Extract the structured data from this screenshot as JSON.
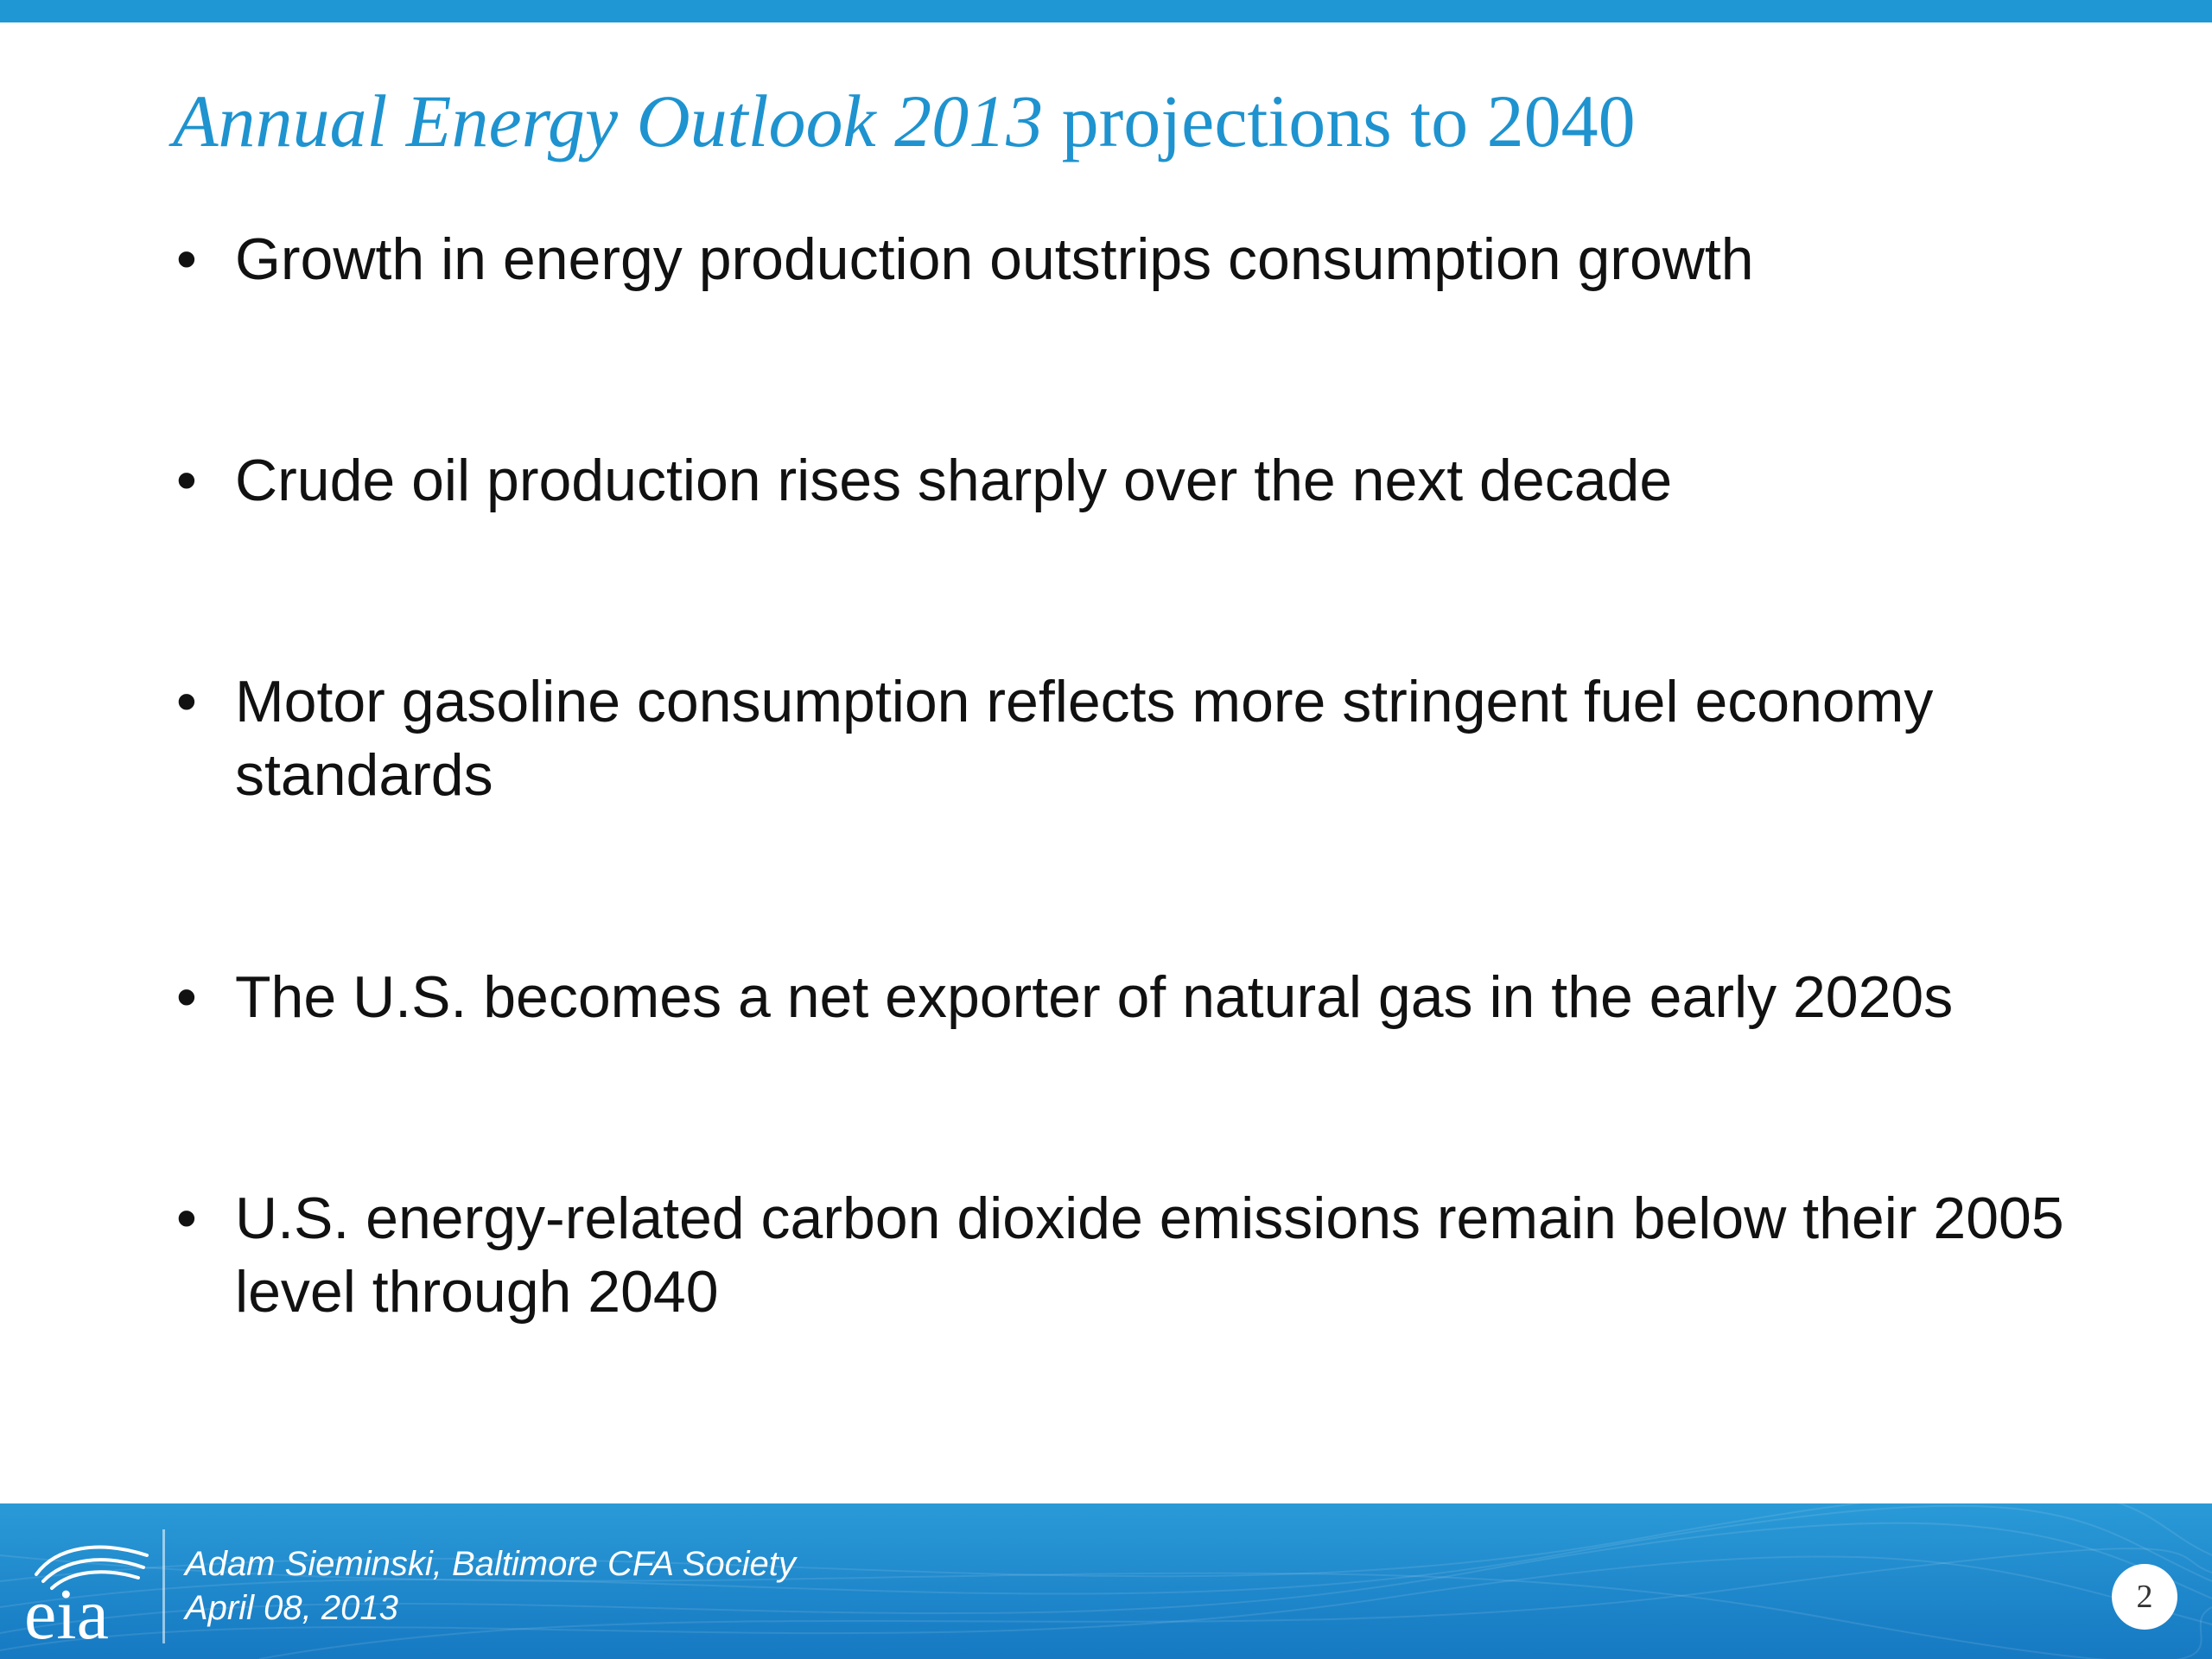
{
  "slide": {
    "title_italic": "Annual Energy Outlook 2013",
    "title_rest": " projections to 2040",
    "bullets": [
      "Growth in energy production outstrips consumption growth",
      "Crude oil production rises sharply over the next decade",
      "Motor gasoline consumption reflects more stringent fuel economy standards",
      "The U.S. becomes a net exporter of natural gas in the early 2020s",
      "U.S. energy-related carbon dioxide emissions remain below their 2005 level through 2040"
    ],
    "bullet_marker": "•"
  },
  "footer": {
    "logo_text": "eia",
    "presenter": "Adam Sieminski, Baltimore CFA Society",
    "date": "April 08, 2013",
    "page_number": "2"
  },
  "colors": {
    "accent": "#1f97d4",
    "title": "#1e93cf",
    "body_text": "#111111",
    "footer_top": "#2a9ad7",
    "footer_bottom": "#1679c2"
  }
}
